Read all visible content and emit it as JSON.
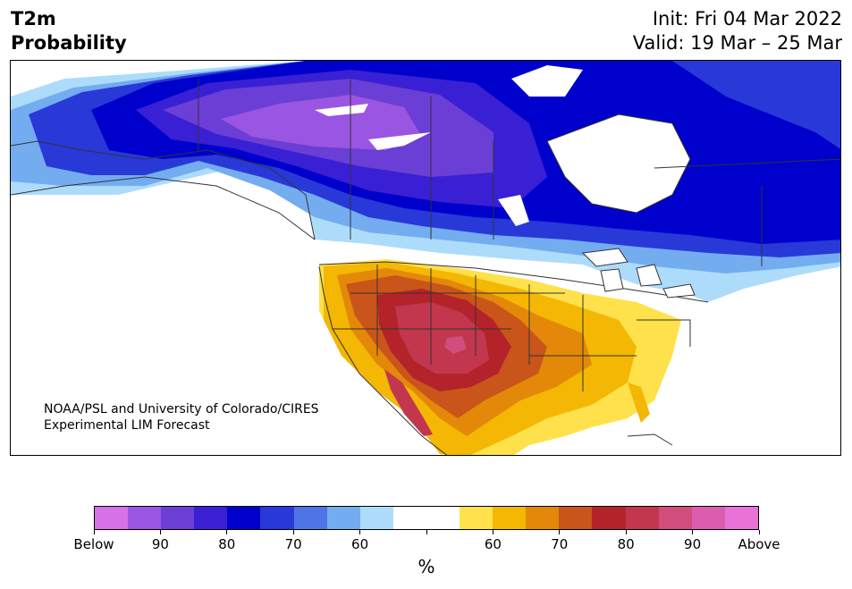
{
  "title": {
    "left_line1": "T2m",
    "left_line2": "Probability"
  },
  "header": {
    "init": "Init: Fri 04 Mar 2022",
    "valid": "Valid: 19 Mar – 25 Mar"
  },
  "credit": {
    "line1": "NOAA/PSL and University of Colorado/CIRES",
    "line2": "Experimental LIM Forecast"
  },
  "colorbar": {
    "colors": [
      "#d672e8",
      "#9a55e2",
      "#6b3ed6",
      "#3a20d4",
      "#0000cd",
      "#2839d8",
      "#4f74e5",
      "#74acf0",
      "#addcfb",
      "#ffffff",
      "#ffffff",
      "#ffe14b",
      "#f3b704",
      "#e38808",
      "#c9551a",
      "#b4232a",
      "#c2374e",
      "#d14d7c",
      "#dc5dad",
      "#e872d6"
    ],
    "labels": [
      "Below",
      "90",
      "80",
      "70",
      "60",
      "",
      "60",
      "70",
      "80",
      "90",
      "Above"
    ],
    "unit": "%"
  },
  "map": {
    "land_below_colors": [
      "#addcfb",
      "#74acf0",
      "#4f74e5",
      "#2839d8",
      "#0000cd",
      "#3a20d4",
      "#6b3ed6",
      "#9a55e2"
    ],
    "land_above_colors": [
      "#ffe14b",
      "#f3b704",
      "#e38808",
      "#c9551a",
      "#b4232a",
      "#c2374e",
      "#d14d7c"
    ]
  }
}
